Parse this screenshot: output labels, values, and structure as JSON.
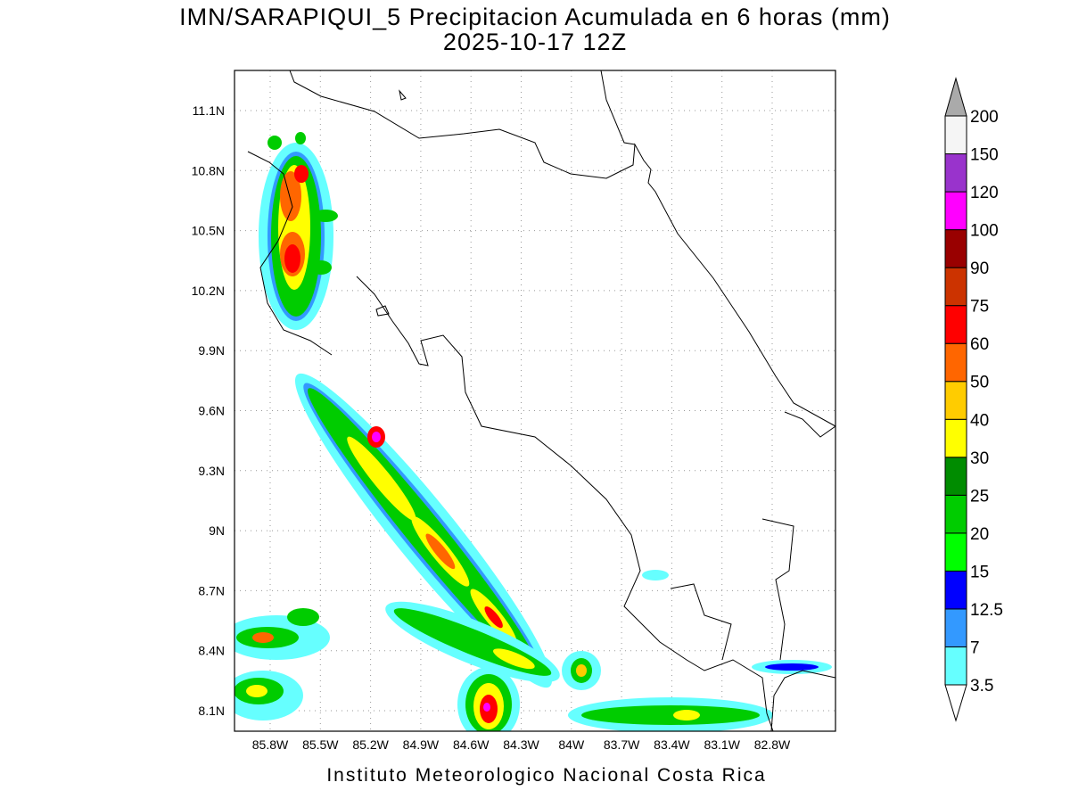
{
  "header": {
    "title": "IMN/SARAPIQUI_5 Precipitacion Acumulada en 6 horas (mm)",
    "subtitle": "2025-10-17 12Z"
  },
  "map": {
    "lat_labels": [
      "11.1N",
      "10.8N",
      "10.5N",
      "10.2N",
      "9.9N",
      "9.6N",
      "9.3N",
      "9N",
      "8.7N",
      "8.4N",
      "8.1N"
    ],
    "lon_labels": [
      "85.8W",
      "85.5W",
      "85.2W",
      "84.9W",
      "84.6W",
      "84.3W",
      "84W",
      "83.7W",
      "83.4W",
      "83.1W",
      "82.8W"
    ]
  },
  "colorbar": {
    "levels": [
      3.5,
      7,
      12.5,
      15,
      20,
      25,
      30,
      40,
      50,
      60,
      75,
      90,
      100,
      120,
      150,
      200
    ],
    "colors": [
      "#66ffff",
      "#3399ff",
      "#0000ff",
      "#00ff00",
      "#00cc00",
      "#008c00",
      "#ffff00",
      "#ffcc00",
      "#ff6600",
      "#ff0000",
      "#cc3300",
      "#990000",
      "#ff00ff",
      "#9933cc",
      "#f5f5f5"
    ]
  },
  "footer": "Instituto Meteorologico Nacional Costa Rica"
}
